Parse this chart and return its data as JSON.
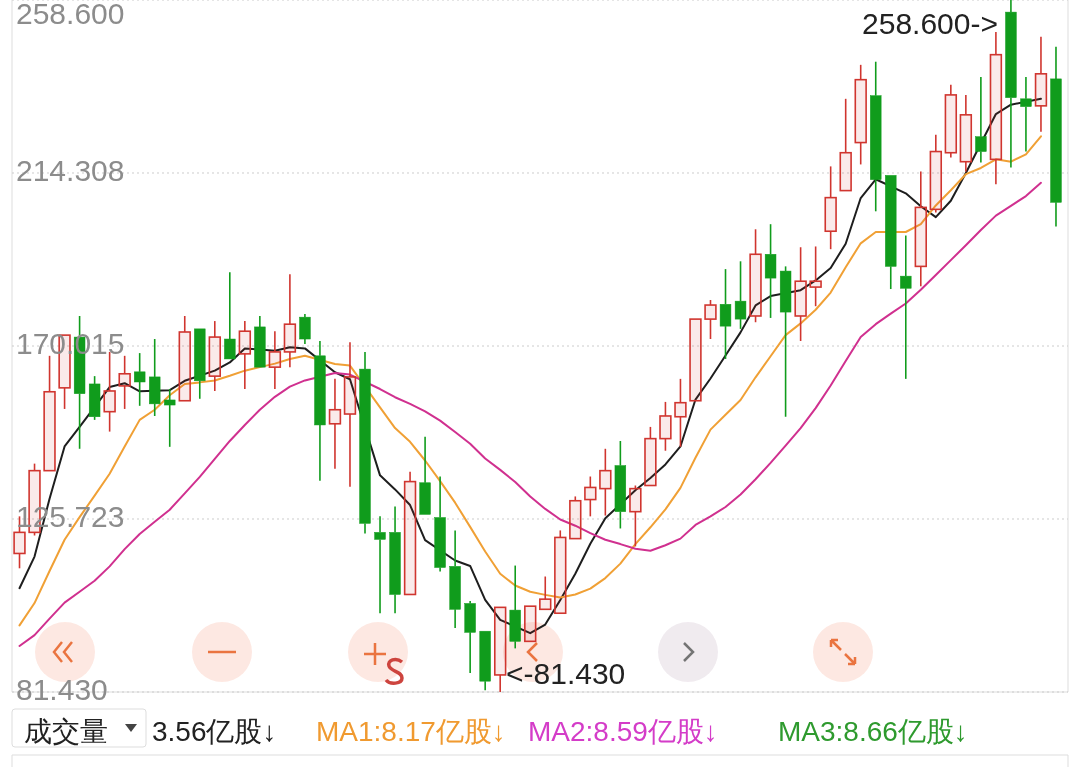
{
  "chart_data": {
    "type": "candlestick",
    "categories": [
      null,
      null,
      null,
      null,
      null,
      null,
      null,
      null,
      null,
      null,
      null,
      null,
      null,
      null,
      null,
      null,
      null,
      null,
      null,
      null,
      null,
      null,
      null,
      null,
      null,
      null,
      null,
      null,
      null,
      null,
      null,
      null,
      null,
      null,
      null,
      null,
      null,
      null,
      null,
      null,
      null,
      null,
      null,
      null,
      null,
      null,
      null,
      null,
      null,
      null,
      null,
      null,
      null,
      null,
      null,
      null,
      null,
      null,
      null,
      null,
      null,
      null,
      null,
      null,
      null,
      null,
      null,
      null,
      null,
      null
    ],
    "ylim": [
      81.43,
      258.6
    ],
    "yticks": [
      {
        "value": 81.43,
        "label": "81.430"
      },
      {
        "value": 125.723,
        "label": "125.723"
      },
      {
        "value": 170.015,
        "label": "170.015"
      },
      {
        "value": 214.308,
        "label": "214.308"
      },
      {
        "value": 258.6,
        "label": "258.600"
      }
    ],
    "tick_labels": "y",
    "grid": "y",
    "ohlc": [
      [
        116.9,
        126.4,
        113.1,
        122.3
      ],
      [
        122.3,
        139.9,
        121.5,
        138.1
      ],
      [
        138.1,
        167.5,
        137.8,
        158.3
      ],
      [
        159.3,
        173.1,
        153.9,
        172.8
      ],
      [
        172.3,
        177.7,
        143.7,
        157.8
      ],
      [
        160.3,
        162.3,
        151.1,
        151.9
      ],
      [
        153.2,
        168.5,
        148.1,
        158.5
      ],
      [
        159.8,
        167.5,
        153.9,
        162.9
      ],
      [
        163.4,
        168.2,
        154.7,
        160.8
      ],
      [
        162.1,
        171.8,
        152.1,
        155.2
      ],
      [
        156.2,
        159.0,
        144.2,
        154.9
      ],
      [
        156.0,
        177.7,
        155.7,
        173.6
      ],
      [
        174.4,
        174.6,
        156.5,
        161.1
      ],
      [
        162.3,
        176.4,
        158.5,
        172.3
      ],
      [
        171.8,
        188.9,
        166.4,
        166.7
      ],
      [
        168.0,
        176.4,
        159.0,
        173.8
      ],
      [
        174.9,
        177.7,
        164.4,
        164.6
      ],
      [
        164.6,
        173.8,
        159.0,
        168.5
      ],
      [
        168.5,
        188.4,
        164.6,
        175.6
      ],
      [
        177.4,
        178.2,
        170.5,
        171.8
      ],
      [
        167.5,
        171.3,
        135.5,
        149.8
      ],
      [
        150.1,
        161.6,
        138.6,
        153.7
      ],
      [
        152.6,
        171.0,
        134.0,
        162.1
      ],
      [
        164.1,
        168.5,
        122.0,
        124.6
      ],
      [
        122.3,
        126.4,
        101.6,
        120.5
      ],
      [
        122.3,
        128.9,
        101.6,
        106.4
      ],
      [
        106.4,
        137.8,
        106.2,
        135.3
      ],
      [
        135.0,
        146.8,
        126.6,
        126.9
      ],
      [
        126.1,
        136.6,
        112.3,
        113.3
      ],
      [
        113.6,
        122.8,
        97.8,
        102.6
      ],
      [
        104.1,
        104.7,
        86.3,
        96.7
      ],
      [
        97.0,
        97.2,
        81.9,
        84.2
      ],
      [
        85.8,
        103.6,
        81.43,
        103.1
      ],
      [
        102.4,
        113.8,
        92.6,
        94.4
      ],
      [
        94.4,
        103.6,
        94.2,
        103.4
      ],
      [
        102.6,
        111.0,
        102.1,
        105.2
      ],
      [
        101.6,
        122.8,
        101.3,
        121.0
      ],
      [
        120.7,
        131.5,
        120.5,
        130.4
      ],
      [
        130.7,
        136.6,
        126.4,
        133.8
      ],
      [
        133.5,
        143.7,
        126.6,
        138.1
      ],
      [
        139.4,
        145.7,
        123.3,
        127.6
      ],
      [
        127.6,
        134.3,
        118.7,
        133.5
      ],
      [
        134.3,
        149.3,
        134.0,
        146.3
      ],
      [
        146.3,
        155.7,
        143.2,
        152.1
      ],
      [
        151.9,
        161.6,
        144.2,
        155.5
      ],
      [
        156.0,
        177.4,
        155.7,
        176.9
      ],
      [
        176.9,
        181.8,
        171.8,
        180.5
      ],
      [
        180.7,
        189.7,
        166.7,
        175.1
      ],
      [
        181.5,
        191.7,
        174.4,
        176.9
      ],
      [
        177.7,
        199.9,
        176.1,
        193.5
      ],
      [
        193.5,
        201.2,
        177.2,
        187.4
      ],
      [
        189.2,
        190.4,
        151.9,
        178.7
      ],
      [
        177.7,
        195.3,
        171.3,
        186.6
      ],
      [
        185.1,
        195.5,
        180.2,
        186.6
      ],
      [
        199.4,
        216.0,
        194.8,
        208.0
      ],
      [
        209.8,
        233.3,
        209.6,
        219.5
      ],
      [
        222.1,
        242.0,
        216.5,
        238.2
      ],
      [
        234.1,
        242.8,
        204.5,
        212.6
      ],
      [
        213.7,
        213.7,
        184.6,
        190.4
      ],
      [
        187.9,
        198.3,
        161.6,
        184.8
      ],
      [
        190.4,
        214.7,
        185.3,
        205.5
      ],
      [
        205.0,
        224.1,
        204.2,
        219.8
      ],
      [
        219.5,
        236.9,
        218.3,
        234.3
      ],
      [
        217.2,
        234.3,
        214.7,
        229.2
      ],
      [
        223.6,
        238.9,
        217.0,
        219.8
      ],
      [
        217.8,
        250.4,
        211.4,
        244.6
      ],
      [
        255.5,
        258.6,
        215.7,
        233.6
      ],
      [
        233.3,
        238.9,
        219.8,
        231.3
      ],
      [
        231.5,
        249.2,
        224.9,
        239.7
      ],
      [
        238.4,
        246.6,
        200.6,
        206.8
      ]
    ],
    "colors": [
      "#d0352f",
      "#d0352f",
      "#d0352f",
      "#d0352f",
      "#109c1c",
      "#109c1c",
      "#d0352f",
      "#d0352f",
      "#109c1c",
      "#109c1c",
      "#109c1c",
      "#d0352f",
      "#109c1c",
      "#d0352f",
      "#109c1c",
      "#d0352f",
      "#109c1c",
      "#d0352f",
      "#d0352f",
      "#109c1c",
      "#109c1c",
      "#d0352f",
      "#d0352f",
      "#109c1c",
      "#109c1c",
      "#109c1c",
      "#d0352f",
      "#109c1c",
      "#109c1c",
      "#109c1c",
      "#109c1c",
      "#109c1c",
      "#d0352f",
      "#109c1c",
      "#d0352f",
      "#d0352f",
      "#d0352f",
      "#d0352f",
      "#d0352f",
      "#d0352f",
      "#109c1c",
      "#d0352f",
      "#d0352f",
      "#d0352f",
      "#d0352f",
      "#d0352f",
      "#d0352f",
      "#109c1c",
      "#109c1c",
      "#d0352f",
      "#109c1c",
      "#109c1c",
      "#d0352f",
      "#d0352f",
      "#d0352f",
      "#d0352f",
      "#d0352f",
      "#109c1c",
      "#109c1c",
      "#109c1c",
      "#d0352f",
      "#d0352f",
      "#d0352f",
      "#d0352f",
      "#109c1c",
      "#d0352f",
      "#109c1c",
      "#109c1c",
      "#d0352f",
      "#109c1c"
    ],
    "series": [
      {
        "type": "line",
        "color": "#1e1e1e",
        "values": [
          108.0,
          116.1,
          130.9,
          144.3,
          149.3,
          null,
          159.5,
          160.5,
          158.4,
          null,
          158.7,
          161.1,
          null,
          163.7,
          165.8,
          169.4,
          null,
          168.8,
          169.7,
          169.4,
          null,
          163.3,
          161.5,
          null,
          136.9,
          133.3,
          129.3,
          120.3,
          null,
          115.1,
          113.7,
          105.0,
          99.9,
          null,
          96.5,
          98.7,
          105.0,
          111.7,
          119.4,
          125.9,
          null,
          133.1,
          136.2,
          139.7,
          144.3,
          156.3,
          161.7,
          167.6,
          173.5,
          180.4,
          182.8,
          null,
          184.3,
          186.8,
          190.0,
          196.2,
          207.9,
          212.7,
          null,
          209.1,
          205.8,
          203.0,
          207.2,
          214.3,
          null,
          229.4,
          231.8,
          null,
          233.3,
          null
        ]
      },
      {
        "type": "line",
        "color": "#f0a035",
        "values": [
          98.5,
          104.2,
          112.4,
          120.4,
          126.2,
          131.7,
          137.3,
          144.3,
          151.1,
          153.7,
          157.4,
          160.3,
          160.7,
          161.2,
          162.4,
          163.7,
          164.6,
          165.5,
          166.7,
          167.5,
          null,
          165.4,
          165.0,
          null,
          154.3,
          149.0,
          145.5,
          140.7,
          135.4,
          129.9,
          123.7,
          117.4,
          111.7,
          108.7,
          107.1,
          106.3,
          105.6,
          106.4,
          107.9,
          110.6,
          114.3,
          119.3,
          123.6,
          128.2,
          133.7,
          141.4,
          148.6,
          152.4,
          156.2,
          162.0,
          167.4,
          172.8,
          175.8,
          179.3,
          183.7,
          190.2,
          196.3,
          199.2,
          null,
          199.2,
          201.2,
          206.0,
          209.9,
          214.0,
          215.6,
          217.8,
          217.2,
          219.1,
          223.7,
          null
        ]
      },
      {
        "type": "line",
        "color": "#d0308f",
        "values": [
          93.2,
          96.0,
          100.2,
          104.3,
          107.1,
          109.9,
          113.6,
          118.0,
          121.9,
          125.0,
          128.1,
          132.3,
          136.5,
          141.1,
          145.7,
          149.8,
          153.7,
          157.0,
          159.6,
          161.2,
          null,
          163.1,
          162.7,
          null,
          159.0,
          156.9,
          155.2,
          153.3,
          150.9,
          148.0,
          145.0,
          141.2,
          138.3,
          135.2,
          131.5,
          128.3,
          125.6,
          124.0,
          122.1,
          120.4,
          119.3,
          118.1,
          117.6,
          119.0,
          120.7,
          124.2,
          126.4,
          128.8,
          132.0,
          135.9,
          140.1,
          144.5,
          149.0,
          154.1,
          159.9,
          166.2,
          172.3,
          175.6,
          178.3,
          180.9,
          184.4,
          188.2,
          192.0,
          195.8,
          199.7,
          203.4,
          205.9,
          208.4,
          211.8,
          null
        ]
      }
    ],
    "annotations": [
      "258.600->",
      "<-81.430",
      "成交量",
      "3.56亿股↓",
      "MA1:8.17亿股↓",
      "MA2:8.59亿股↓",
      "MA3:8.66亿股↓"
    ]
  }
}
